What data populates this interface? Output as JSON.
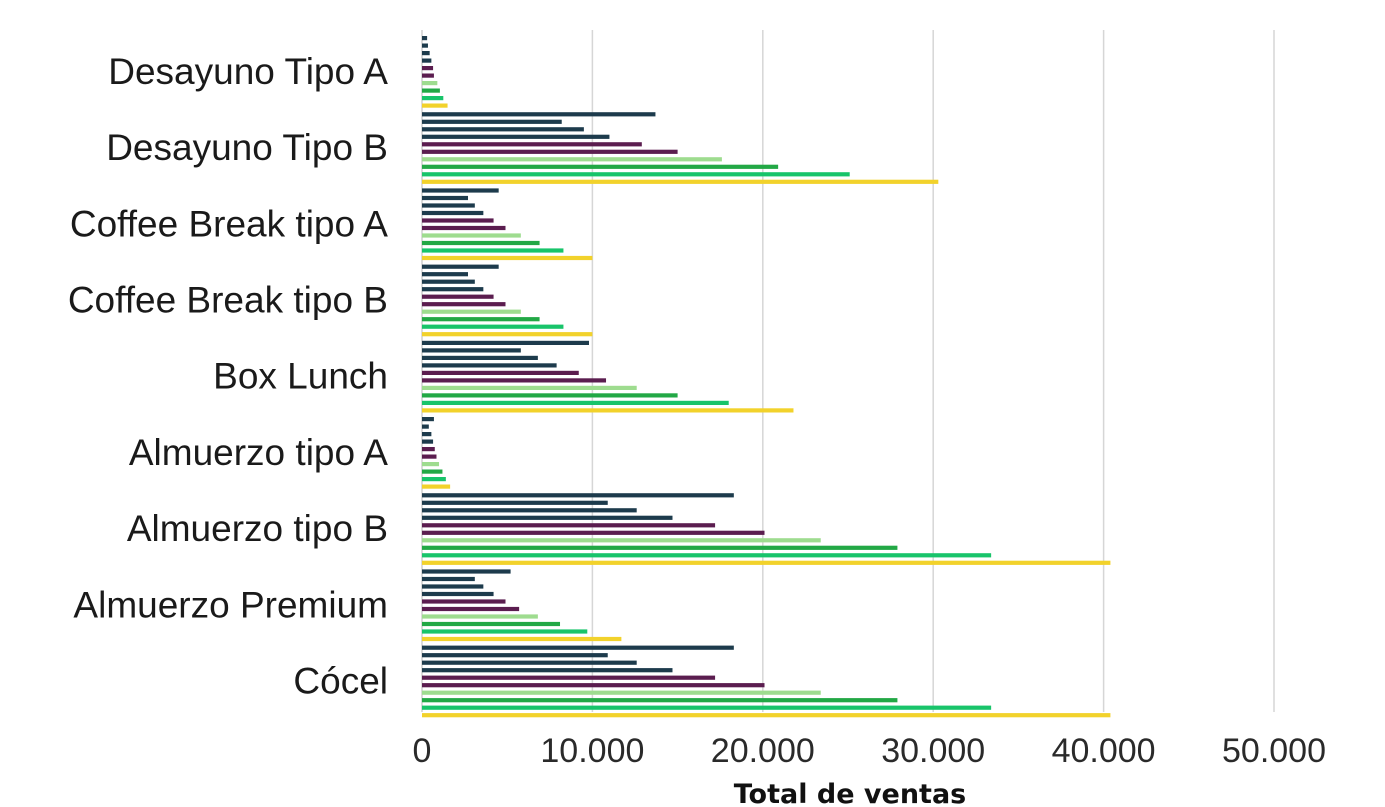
{
  "chart_data": {
    "type": "bar",
    "orientation": "horizontal",
    "title": "",
    "xlabel": "Total de ventas",
    "ylabel": "",
    "xlim": [
      0,
      50000
    ],
    "xticks": [
      0,
      10000,
      20000,
      30000,
      40000,
      50000
    ],
    "xtick_labels": [
      "0",
      "10.000",
      "20.000",
      "30.000",
      "40.000",
      "50.000"
    ],
    "grid": "vertical",
    "legend": "none",
    "categories": [
      "Desayuno Tipo A",
      "Desayuno Tipo B",
      "Coffee Break tipo A",
      "Coffee Break tipo B",
      "Box Lunch",
      "Almuerzo tipo A",
      "Almuerzo tipo B",
      "Almuerzo Premium",
      "Cócel"
    ],
    "series": [
      {
        "color": "#1d3b4c",
        "values": [
          300,
          13700,
          4500,
          4500,
          9800,
          700,
          18300,
          5200,
          18300
        ]
      },
      {
        "color": "#1d3b4c",
        "values": [
          350,
          8200,
          2700,
          2700,
          5800,
          400,
          10900,
          3100,
          10900
        ]
      },
      {
        "color": "#1d3b4c",
        "values": [
          450,
          9500,
          3100,
          3100,
          6800,
          550,
          12600,
          3600,
          12600
        ]
      },
      {
        "color": "#1d3b4c",
        "values": [
          550,
          11000,
          3600,
          3600,
          7900,
          650,
          14700,
          4200,
          14700
        ]
      },
      {
        "color": "#5b1d4f",
        "values": [
          650,
          12900,
          4200,
          4200,
          9200,
          750,
          17200,
          4900,
          17200
        ]
      },
      {
        "color": "#5b1d4f",
        "values": [
          700,
          15000,
          4900,
          4900,
          10800,
          850,
          20100,
          5700,
          20100
        ]
      },
      {
        "color": "#9edc8f",
        "values": [
          900,
          17600,
          5800,
          5800,
          12600,
          1000,
          23400,
          6800,
          23400
        ]
      },
      {
        "color": "#22a845",
        "values": [
          1050,
          20900,
          6900,
          6900,
          15000,
          1200,
          27900,
          8100,
          27900
        ]
      },
      {
        "color": "#18c46a",
        "values": [
          1250,
          25100,
          8300,
          8300,
          18000,
          1400,
          33400,
          9700,
          33400
        ]
      },
      {
        "color": "#f2d22b",
        "values": [
          1500,
          30300,
          10000,
          10000,
          21800,
          1650,
          40400,
          11700,
          40400
        ]
      }
    ]
  }
}
